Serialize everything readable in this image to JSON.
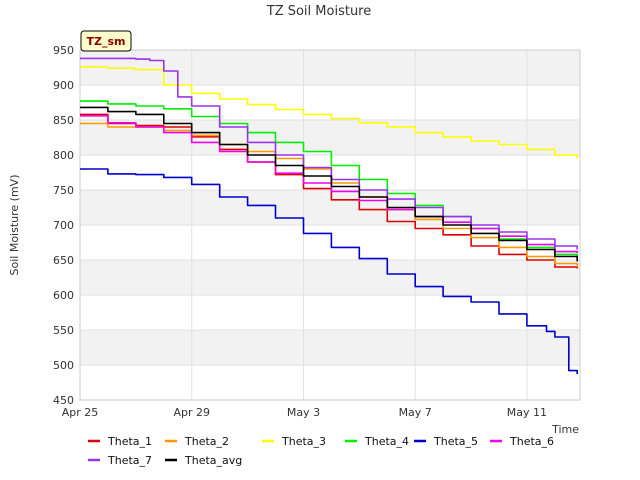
{
  "chart_data": {
    "type": "line",
    "title": "TZ Soil Moisture",
    "xlabel": "Time",
    "ylabel": "Soil Moisture (mV)",
    "badge": "TZ_sm",
    "x_domain": [
      "Apr 25",
      "May 12.9"
    ],
    "x_ticks": [
      {
        "label": "Apr 25",
        "day": 0
      },
      {
        "label": "Apr 29",
        "day": 4
      },
      {
        "label": "May 3",
        "day": 8
      },
      {
        "label": "May 7",
        "day": 12
      },
      {
        "label": "May 11",
        "day": 16
      }
    ],
    "ylim": [
      450,
      950
    ],
    "y_ticks": [
      450,
      500,
      550,
      600,
      650,
      700,
      750,
      800,
      850,
      900,
      950
    ],
    "grid": true,
    "legend_position": "bottom",
    "series": [
      {
        "name": "Theta_1",
        "color": "#dd0000",
        "x": [
          0,
          1,
          2,
          3,
          4,
          5,
          6,
          7,
          8,
          9,
          10,
          11,
          12,
          13,
          14,
          15,
          16,
          17,
          17.8
        ],
        "y": [
          858,
          845,
          842,
          840,
          826,
          808,
          790,
          772,
          752,
          736,
          722,
          705,
          695,
          686,
          670,
          658,
          650,
          640,
          638
        ]
      },
      {
        "name": "Theta_2",
        "color": "#ff9900",
        "x": [
          0,
          1,
          2,
          3,
          4,
          5,
          6,
          7,
          8,
          9,
          10,
          11,
          12,
          13,
          14,
          15,
          16,
          17,
          17.8
        ],
        "y": [
          845,
          840,
          840,
          835,
          828,
          815,
          805,
          795,
          780,
          760,
          740,
          722,
          708,
          695,
          682,
          668,
          655,
          645,
          640
        ]
      },
      {
        "name": "Theta_3",
        "color": "#ffff00",
        "x": [
          0,
          1,
          2,
          3,
          4,
          5,
          6,
          7,
          8,
          9,
          10,
          11,
          12,
          13,
          14,
          15,
          16,
          17,
          17.8
        ],
        "y": [
          926,
          924,
          922,
          900,
          888,
          880,
          872,
          865,
          858,
          852,
          846,
          840,
          832,
          826,
          820,
          815,
          808,
          800,
          795
        ]
      },
      {
        "name": "Theta_4",
        "color": "#00ee00",
        "x": [
          0,
          1,
          2,
          3,
          4,
          5,
          6,
          7,
          8,
          9,
          10,
          11,
          12,
          13,
          14,
          15,
          16,
          17,
          17.8
        ],
        "y": [
          877,
          873,
          870,
          866,
          855,
          845,
          832,
          818,
          805,
          785,
          765,
          745,
          728,
          712,
          695,
          680,
          668,
          658,
          652
        ]
      },
      {
        "name": "Theta_5",
        "color": "#0000cc",
        "x": [
          0,
          1,
          2,
          3,
          4,
          5,
          6,
          7,
          8,
          9,
          10,
          11,
          12,
          13,
          14,
          15,
          16,
          16.7,
          17,
          17.5,
          17.8
        ],
        "y": [
          780,
          773,
          772,
          768,
          758,
          740,
          728,
          710,
          688,
          668,
          652,
          630,
          612,
          598,
          590,
          573,
          556,
          548,
          540,
          492,
          487
        ]
      },
      {
        "name": "Theta_6",
        "color": "#ee00ee",
        "x": [
          0,
          1,
          2,
          3,
          4,
          5,
          6,
          7,
          8,
          9,
          10,
          11,
          12,
          13,
          14,
          15,
          16,
          17,
          17.8
        ],
        "y": [
          856,
          846,
          840,
          832,
          818,
          805,
          790,
          774,
          760,
          748,
          735,
          722,
          712,
          704,
          695,
          684,
          672,
          662,
          660
        ]
      },
      {
        "name": "Theta_7",
        "color": "#9933ee",
        "x": [
          0,
          1,
          2,
          2.5,
          3,
          3.5,
          4,
          5,
          6,
          7,
          8,
          9,
          10,
          11,
          12,
          13,
          14,
          15,
          16,
          17,
          17.8
        ],
        "y": [
          938,
          938,
          937,
          935,
          920,
          883,
          870,
          840,
          818,
          800,
          782,
          765,
          750,
          737,
          725,
          712,
          700,
          690,
          680,
          670,
          665
        ]
      },
      {
        "name": "Theta_avg",
        "color": "#000000",
        "x": [
          0,
          1,
          2,
          3,
          4,
          5,
          6,
          7,
          8,
          9,
          10,
          11,
          12,
          13,
          14,
          15,
          16,
          17,
          17.8
        ],
        "y": [
          868,
          862,
          858,
          845,
          832,
          815,
          800,
          785,
          770,
          755,
          740,
          725,
          712,
          700,
          688,
          678,
          665,
          655,
          648
        ]
      }
    ]
  }
}
